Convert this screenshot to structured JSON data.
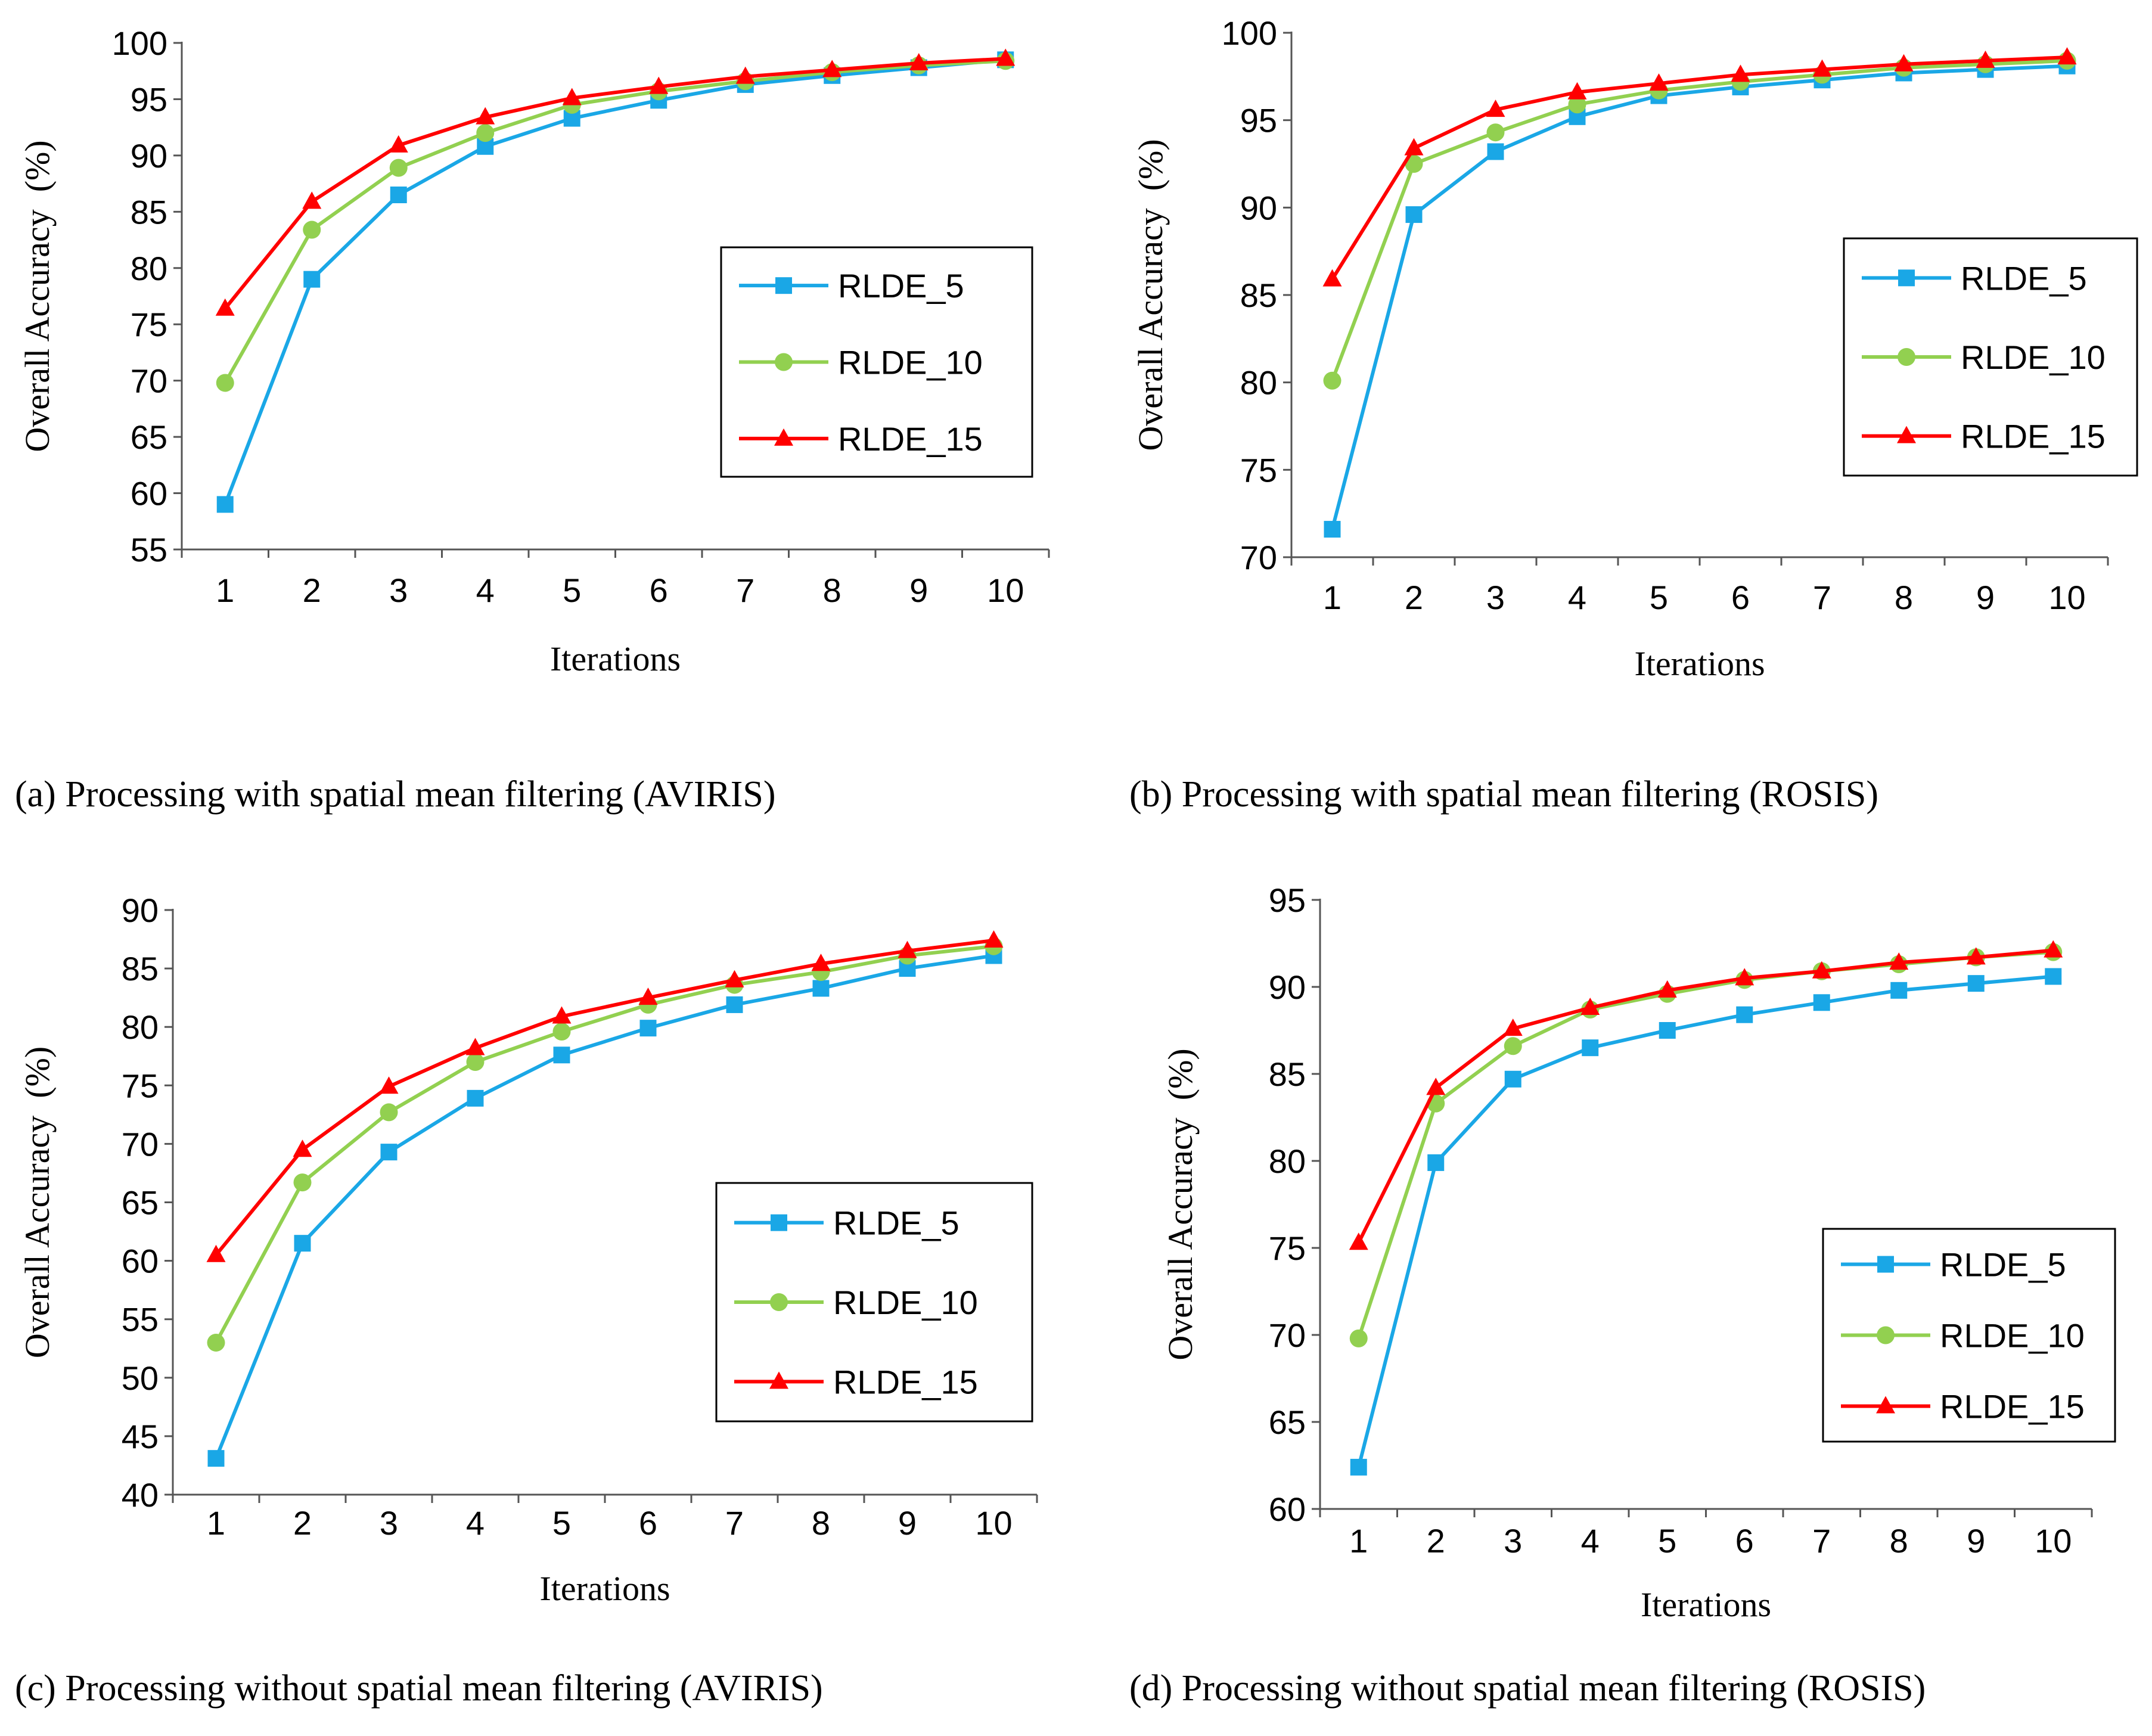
{
  "legend_series": [
    "RLDE_5",
    "RLDE_10",
    "RLDE_15"
  ],
  "series_colors": {
    "RLDE_5": "#1aa7e6",
    "RLDE_10": "#92d050",
    "RLDE_15": "#ff0000"
  },
  "series_markers": {
    "RLDE_5": "square",
    "RLDE_10": "circle",
    "RLDE_15": "triangle"
  },
  "chart_data": [
    {
      "type": "line",
      "caption": "(a) Processing with spatial mean filtering (AVIRIS)",
      "xlabel": "Iterations",
      "ylabel": "Overall Accuracy  (%)",
      "x": [
        1,
        2,
        3,
        4,
        5,
        6,
        7,
        8,
        9,
        10
      ],
      "ylim": [
        55,
        100
      ],
      "yticks": [
        55,
        60,
        65,
        70,
        75,
        80,
        85,
        90,
        95,
        100
      ],
      "legend_position": "right-middle",
      "series": [
        {
          "name": "RLDE_5",
          "values": [
            59.0,
            79.0,
            86.5,
            90.8,
            93.3,
            94.9,
            96.3,
            97.1,
            97.8,
            98.5
          ]
        },
        {
          "name": "RLDE_10",
          "values": [
            69.8,
            83.4,
            88.9,
            92.0,
            94.5,
            95.7,
            96.6,
            97.4,
            98.0,
            98.4
          ]
        },
        {
          "name": "RLDE_15",
          "values": [
            76.4,
            85.9,
            90.9,
            93.4,
            95.1,
            96.1,
            97.0,
            97.6,
            98.2,
            98.6
          ]
        }
      ]
    },
    {
      "type": "line",
      "caption": "(b) Processing with spatial mean filtering (ROSIS)",
      "xlabel": "Iterations",
      "ylabel": "Overall Accuracy  (%)",
      "x": [
        1,
        2,
        3,
        4,
        5,
        6,
        7,
        8,
        9,
        10
      ],
      "ylim": [
        70,
        100
      ],
      "yticks": [
        70,
        75,
        80,
        85,
        90,
        95,
        100
      ],
      "legend_position": "right-middle",
      "series": [
        {
          "name": "RLDE_5",
          "values": [
            71.6,
            89.6,
            93.2,
            95.2,
            96.4,
            96.9,
            97.3,
            97.7,
            97.9,
            98.1
          ]
        },
        {
          "name": "RLDE_10",
          "values": [
            80.1,
            92.5,
            94.3,
            95.9,
            96.7,
            97.2,
            97.6,
            98.0,
            98.2,
            98.4
          ]
        },
        {
          "name": "RLDE_15",
          "values": [
            85.9,
            93.4,
            95.6,
            96.6,
            97.1,
            97.6,
            97.9,
            98.2,
            98.4,
            98.6
          ]
        }
      ]
    },
    {
      "type": "line",
      "caption": "(c) Processing without spatial mean filtering (AVIRIS)",
      "xlabel": "Iterations",
      "ylabel": "Overall Accuracy  (%)",
      "x": [
        1,
        2,
        3,
        4,
        5,
        6,
        7,
        8,
        9,
        10
      ],
      "ylim": [
        40,
        90
      ],
      "yticks": [
        40,
        45,
        50,
        55,
        60,
        65,
        70,
        75,
        80,
        85,
        90
      ],
      "legend_position": "bottom-right",
      "series": [
        {
          "name": "RLDE_5",
          "values": [
            43.1,
            61.5,
            69.3,
            73.9,
            77.6,
            79.9,
            81.9,
            83.3,
            85.0,
            86.1
          ]
        },
        {
          "name": "RLDE_10",
          "values": [
            53.0,
            66.7,
            72.7,
            77.0,
            79.6,
            81.9,
            83.6,
            84.7,
            86.1,
            86.9
          ]
        },
        {
          "name": "RLDE_15",
          "values": [
            60.5,
            69.5,
            74.9,
            78.2,
            80.9,
            82.5,
            84.0,
            85.4,
            86.5,
            87.4
          ]
        }
      ]
    },
    {
      "type": "line",
      "caption": "(d) Processing without spatial mean filtering (ROSIS)",
      "xlabel": "Iterations",
      "ylabel": "Overall Accuracy  (%)",
      "x": [
        1,
        2,
        3,
        4,
        5,
        6,
        7,
        8,
        9,
        10
      ],
      "ylim": [
        60,
        95
      ],
      "yticks": [
        60,
        65,
        70,
        75,
        80,
        85,
        90,
        95
      ],
      "legend_position": "bottom-right",
      "series": [
        {
          "name": "RLDE_5",
          "values": [
            62.4,
            79.9,
            84.7,
            86.5,
            87.5,
            88.4,
            89.1,
            89.8,
            90.2,
            90.6
          ]
        },
        {
          "name": "RLDE_10",
          "values": [
            69.8,
            83.3,
            86.6,
            88.7,
            89.6,
            90.4,
            90.9,
            91.3,
            91.7,
            92.0
          ]
        },
        {
          "name": "RLDE_15",
          "values": [
            75.3,
            84.2,
            87.6,
            88.8,
            89.8,
            90.5,
            90.9,
            91.4,
            91.7,
            92.1
          ]
        }
      ]
    }
  ]
}
